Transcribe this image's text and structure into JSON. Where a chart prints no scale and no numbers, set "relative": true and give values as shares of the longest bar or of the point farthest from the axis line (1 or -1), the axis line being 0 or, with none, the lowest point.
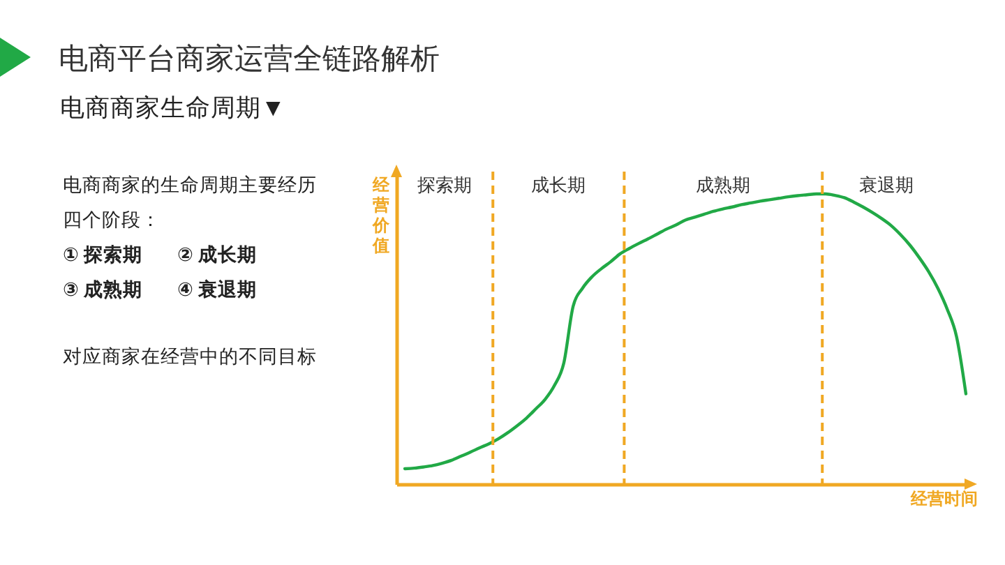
{
  "chart_data": {
    "type": "line",
    "title": "电商平台商家运营全链路解析",
    "subtitle": "电商商家生命周期▼",
    "xlabel": "经营时间",
    "ylabel": "经营价值",
    "annotations": [
      "电商商家的生命周期主要经历四个阶段：",
      "① 探索期",
      "② 成长期",
      "③ 成熟期",
      "④ 衰退期",
      "对应商家在经营中的不同目标",
      "探索期",
      "成长期",
      "成熟期",
      "衰退期"
    ],
    "categories": [
      null,
      null,
      null,
      null,
      null,
      null,
      null,
      null,
      null,
      null,
      null,
      null,
      null,
      null,
      null,
      null,
      null,
      null,
      null,
      null,
      null,
      null,
      null,
      null,
      null,
      null,
      null,
      null,
      null,
      null,
      null,
      null,
      null,
      null,
      null,
      null,
      null,
      null,
      null,
      null,
      null,
      null,
      null,
      null,
      null,
      null,
      null,
      null,
      null,
      null,
      null,
      null,
      null,
      null,
      null,
      null,
      null,
      null,
      null,
      null,
      null
    ],
    "relative": true,
    "series": [
      {
        "color": "#21a946",
        "values": [
          0.053,
          0.055,
          0.059,
          0.064,
          0.072,
          0.082,
          0.096,
          0.11,
          0.125,
          0.139,
          0.156,
          0.177,
          0.201,
          0.227,
          0.259,
          0.292,
          0.34,
          0.417,
          0.613,
          0.675,
          0.714,
          0.742,
          0.766,
          0.793,
          0.812,
          0.829,
          0.845,
          0.862,
          0.879,
          0.893,
          0.91,
          0.92,
          0.93,
          0.94,
          0.948,
          0.955,
          0.963,
          0.969,
          0.975,
          0.98,
          0.985,
          0.99,
          0.994,
          0.997,
          1.0,
          1.0,
          0.995,
          0.987,
          0.972,
          0.955,
          0.936,
          0.915,
          0.891,
          0.86,
          0.824,
          0.781,
          0.733,
          0.675,
          0.603,
          0.508,
          0.311
        ]
      }
    ],
    "line_style": "solid"
  }
}
